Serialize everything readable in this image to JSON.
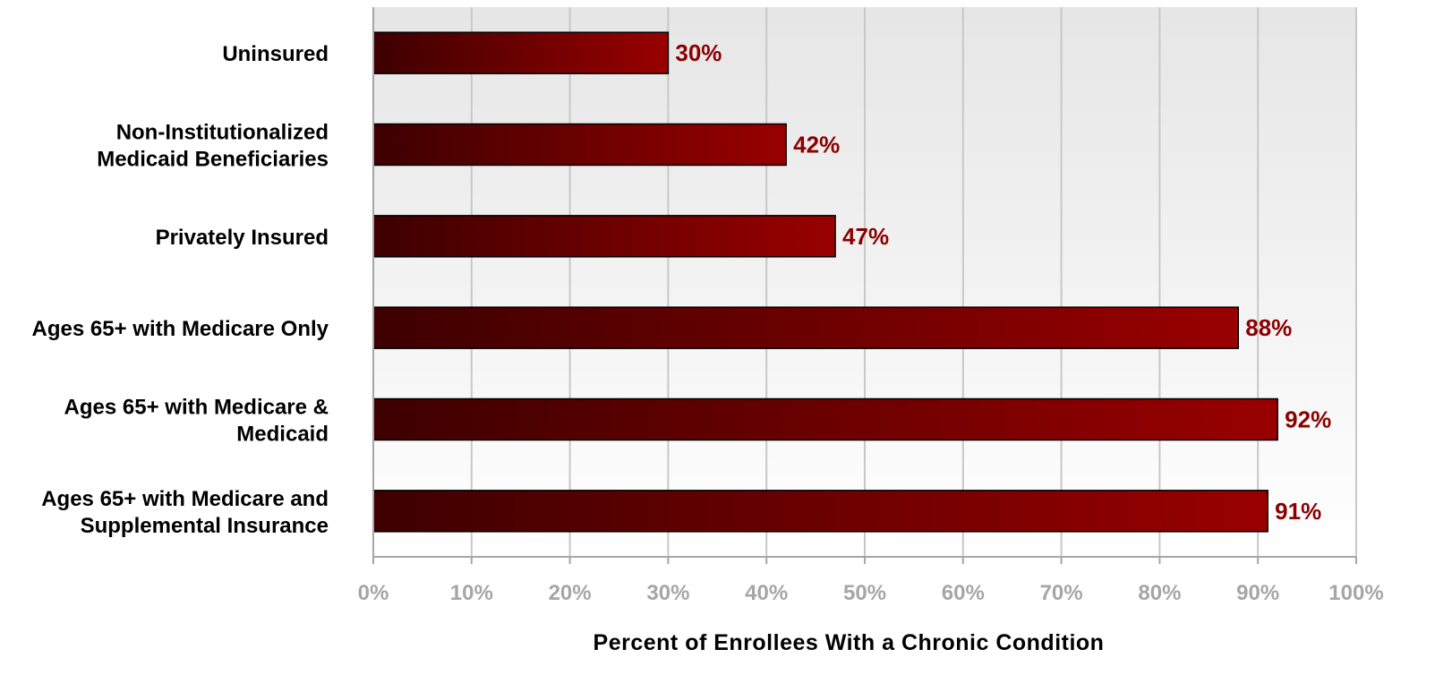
{
  "chart_data": {
    "type": "bar",
    "orientation": "horizontal",
    "categories": [
      [
        "Uninsured"
      ],
      [
        "Non-Institutionalized",
        "Medicaid Beneficiaries"
      ],
      [
        "Privately Insured"
      ],
      [
        "Ages 65+ with Medicare Only"
      ],
      [
        "Ages 65+ with Medicare &",
        "Medicaid"
      ],
      [
        "Ages 65+ with Medicare and",
        "Supplemental Insurance"
      ]
    ],
    "values": [
      30,
      42,
      47,
      88,
      92,
      91
    ],
    "data_labels": [
      "30%",
      "42%",
      "47%",
      "88%",
      "92%",
      "91%"
    ],
    "xlim": [
      0,
      100
    ],
    "x_ticks": [
      0,
      10,
      20,
      30,
      40,
      50,
      60,
      70,
      80,
      90,
      100
    ],
    "x_tick_labels": [
      "0%",
      "10%",
      "20%",
      "30%",
      "40%",
      "50%",
      "60%",
      "70%",
      "80%",
      "90%",
      "100%"
    ],
    "xlabel": "Percent of Enrollees With a Chronic Condition",
    "ylabel": "",
    "title": "",
    "grid": "vertical",
    "legend": "none",
    "colors": {
      "bar_dark": "#3d0000",
      "bar_light": "#990000",
      "data_label": "#8b0000",
      "tick_label": "#a6a6a6",
      "gridline": "#c8c8c8",
      "plot_bg_top": "#e6e6e6",
      "plot_bg_bottom": "#ffffff"
    }
  }
}
